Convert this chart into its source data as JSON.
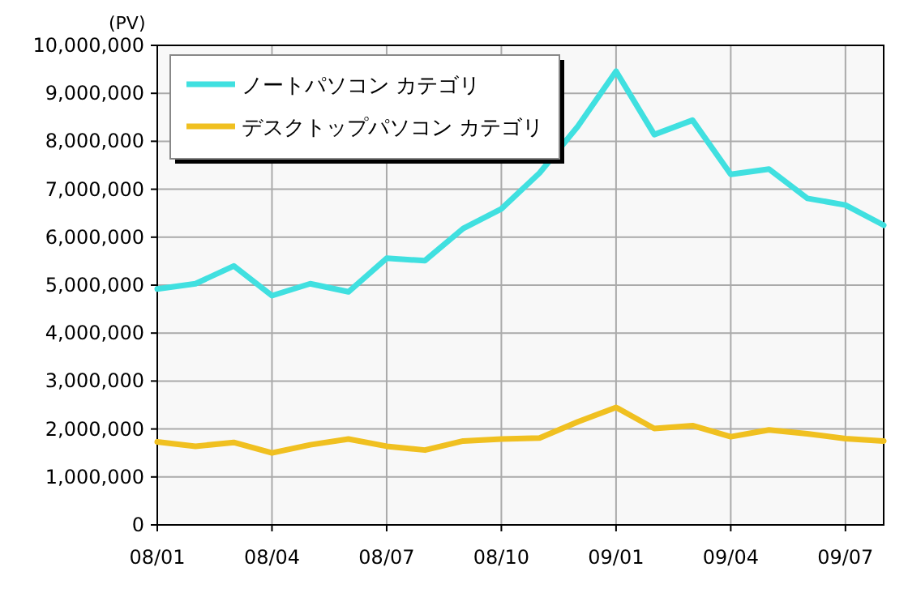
{
  "chart_data": {
    "type": "line",
    "ylabel": "(PV)",
    "categories": [
      "08/01",
      null,
      null,
      "08/04",
      null,
      null,
      "08/07",
      null,
      null,
      "08/10",
      null,
      null,
      "09/01",
      null,
      null,
      "09/04",
      null,
      null,
      "09/07",
      null
    ],
    "series": [
      {
        "name": "ノートパソコン カテゴリ",
        "color": "#40e0e0",
        "values": [
          4920000,
          5030000,
          5400000,
          4780000,
          5030000,
          4860000,
          5560000,
          5510000,
          6180000,
          6590000,
          7340000,
          8310000,
          9460000,
          8140000,
          8440000,
          7310000,
          7420000,
          6810000,
          6670000,
          6250000
        ]
      },
      {
        "name": "デスクトップパソコン カテゴリ",
        "color": "#f0c020",
        "values": [
          1730000,
          1640000,
          1720000,
          1500000,
          1670000,
          1790000,
          1640000,
          1560000,
          1750000,
          1790000,
          1810000,
          2150000,
          2450000,
          2010000,
          2070000,
          1840000,
          1980000,
          1900000,
          1800000,
          1750000
        ]
      }
    ],
    "ylim": [
      0,
      10000000
    ],
    "yticks": [
      {
        "value": 0,
        "label": "0"
      },
      {
        "value": 1000000,
        "label": "1,000,000"
      },
      {
        "value": 2000000,
        "label": "2,000,000"
      },
      {
        "value": 3000000,
        "label": "3,000,000"
      },
      {
        "value": 4000000,
        "label": "4,000,000"
      },
      {
        "value": 5000000,
        "label": "5,000,000"
      },
      {
        "value": 6000000,
        "label": "6,000,000"
      },
      {
        "value": 7000000,
        "label": "7,000,000"
      },
      {
        "value": 8000000,
        "label": "8,000,000"
      },
      {
        "value": 9000000,
        "label": "9,000,000"
      },
      {
        "value": 10000000,
        "label": "10,000,000"
      }
    ],
    "grid": true,
    "legend": "top left",
    "marker": "none",
    "line_style": "solid"
  }
}
